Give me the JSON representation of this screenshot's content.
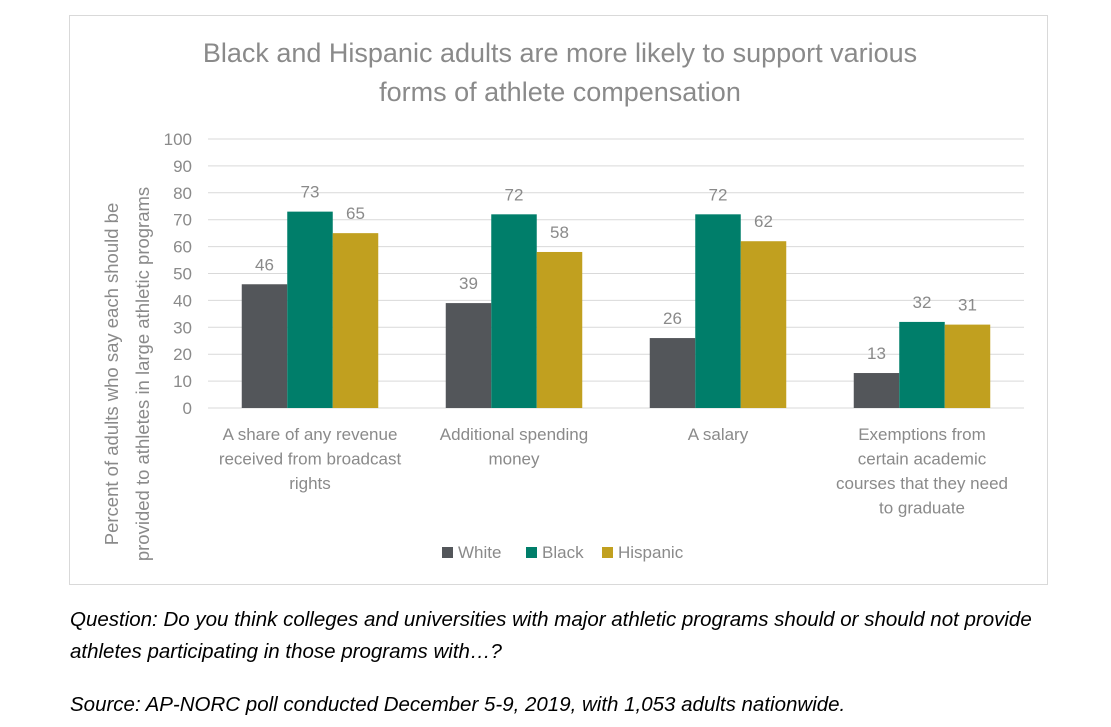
{
  "chart_data": {
    "type": "bar",
    "title_lines": [
      "Black and Hispanic adults are more likely to support various",
      "forms of athlete compensation"
    ],
    "ylabel_lines": [
      "Percent of adults who say each should be",
      "provided to athletes in large athletic programs"
    ],
    "xlabel": "",
    "ylim": [
      0,
      100
    ],
    "yticks": [
      0,
      10,
      20,
      30,
      40,
      50,
      60,
      70,
      80,
      90,
      100
    ],
    "grid": true,
    "legend_position": "bottom",
    "categories": [
      [
        "A share of any revenue",
        "received from broadcast",
        "rights"
      ],
      [
        "Additional spending",
        "money"
      ],
      [
        "A salary"
      ],
      [
        "Exemptions from",
        "certain academic",
        "courses that they need",
        "to graduate"
      ]
    ],
    "series": [
      {
        "name": "White",
        "color": "#53565a",
        "values": [
          46,
          39,
          26,
          13
        ]
      },
      {
        "name": "Black",
        "color": "#007e6a",
        "values": [
          73,
          72,
          72,
          32
        ]
      },
      {
        "name": "Hispanic",
        "color": "#c1a01f",
        "values": [
          65,
          58,
          62,
          31
        ]
      }
    ],
    "colors": {
      "text": "#8a8a8a",
      "title": "#8a8a8a",
      "grid": "#d9d9d9"
    }
  },
  "notes": {
    "question": "Question: Do you think colleges and universities with major athletic programs should or should not provide athletes participating in those programs with…?",
    "source": "Source: AP-NORC poll conducted December 5-9, 2019, with 1,053 adults nationwide."
  }
}
